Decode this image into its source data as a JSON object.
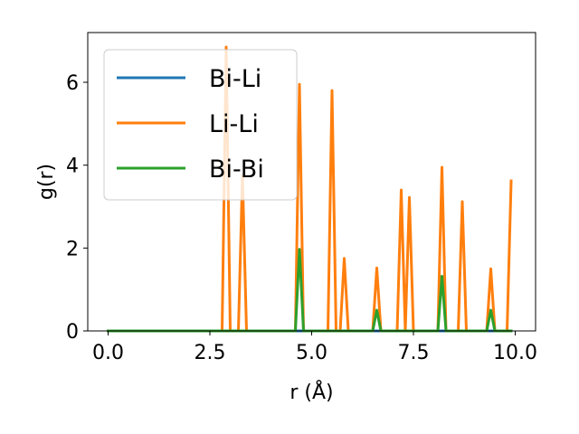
{
  "chart_data": {
    "type": "line",
    "xlabel": "r (Å)",
    "ylabel": "g(r)",
    "xlim": [
      -0.5,
      10.5
    ],
    "ylim": [
      0,
      7.2
    ],
    "xticks": [
      0.0,
      2.5,
      5.0,
      7.5,
      10.0
    ],
    "xtick_labels": [
      "0.0",
      "2.5",
      "5.0",
      "7.5",
      "10.0"
    ],
    "yticks": [
      0,
      2,
      4,
      6
    ],
    "ytick_labels": [
      "0",
      "2",
      "4",
      "6"
    ],
    "grid": false,
    "legend_position": "top-left",
    "series": [
      {
        "name": "Bi-Li",
        "color": "#1f77b4",
        "peaks": []
      },
      {
        "name": "Li-Li",
        "color": "#ff7f0e",
        "peaks": [
          {
            "r": 2.9,
            "g": 6.85
          },
          {
            "r": 3.3,
            "g": 3.75
          },
          {
            "r": 4.7,
            "g": 5.95
          },
          {
            "r": 5.5,
            "g": 5.8
          },
          {
            "r": 5.8,
            "g": 1.75
          },
          {
            "r": 6.6,
            "g": 1.52
          },
          {
            "r": 7.2,
            "g": 3.4
          },
          {
            "r": 7.4,
            "g": 3.22
          },
          {
            "r": 8.2,
            "g": 3.95
          },
          {
            "r": 8.7,
            "g": 3.12
          },
          {
            "r": 9.4,
            "g": 1.5
          },
          {
            "r": 9.9,
            "g": 3.62
          }
        ]
      },
      {
        "name": "Bi-Bi",
        "color": "#2ca02c",
        "peaks": [
          {
            "r": 4.7,
            "g": 1.97
          },
          {
            "r": 6.6,
            "g": 0.5
          },
          {
            "r": 8.2,
            "g": 1.32
          },
          {
            "r": 9.4,
            "g": 0.5
          }
        ]
      }
    ],
    "x_range": [
      0.0,
      9.9
    ],
    "x_step": 0.1
  }
}
